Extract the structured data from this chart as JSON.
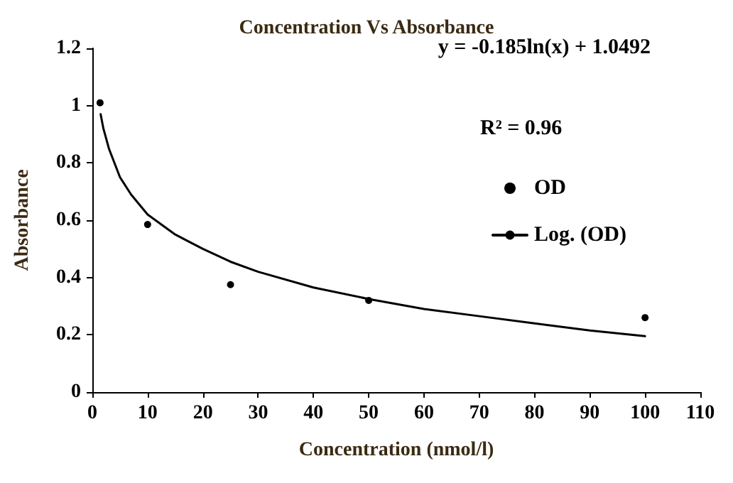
{
  "chart_data": {
    "type": "scatter",
    "title": "Concentration Vs Absorbance",
    "xlabel": "Concentration (nmol/l)",
    "ylabel": "Absorbance",
    "annotations": [
      "y = -0.185ln(x) + 1.0492",
      "R² = 0.96"
    ],
    "series": [
      {
        "name": "OD",
        "color": "#000000",
        "marker": "circle",
        "x": [
          1.4,
          10,
          25,
          50,
          100
        ],
        "values": [
          1.01,
          0.585,
          0.375,
          0.32,
          0.26
        ]
      },
      {
        "name": "Log. (OD)",
        "type": "line",
        "color": "#000000",
        "marker": "none",
        "line_style": "solid",
        "x": [
          1.5,
          2,
          3,
          5,
          7,
          10,
          15,
          20,
          25,
          30,
          40,
          50,
          60,
          70,
          80,
          90,
          100
        ],
        "values": [
          0.97,
          0.92,
          0.85,
          0.75,
          0.69,
          0.62,
          0.55,
          0.5,
          0.455,
          0.42,
          0.365,
          0.325,
          0.29,
          0.265,
          0.24,
          0.215,
          0.195
        ]
      }
    ],
    "xlim": [
      0,
      110
    ],
    "xticks": [
      0,
      10,
      20,
      30,
      40,
      50,
      60,
      70,
      80,
      90,
      100,
      110
    ],
    "ylim": [
      0,
      1.2
    ],
    "yticks": [
      0,
      0.2,
      0.4,
      0.6,
      0.8,
      1,
      1.2
    ],
    "grid": false,
    "legend": "right"
  }
}
